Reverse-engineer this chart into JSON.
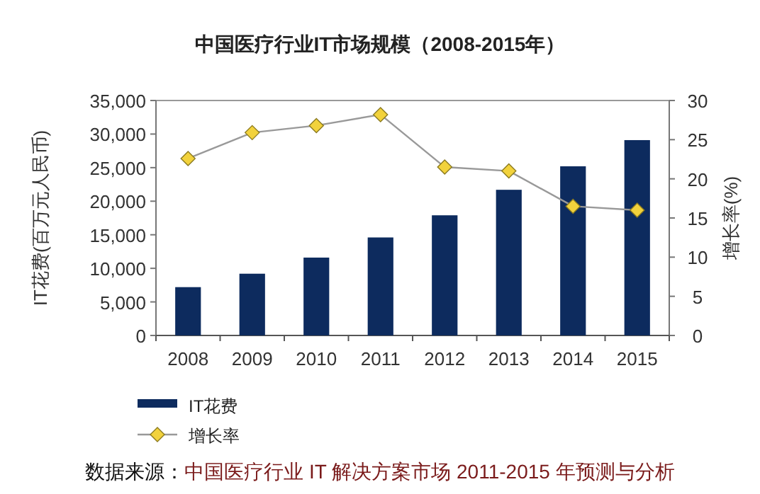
{
  "chart_data": {
    "type": "bar",
    "title": "中国医疗行业IT市场规模（2008-2015年）",
    "categories": [
      "2008",
      "2009",
      "2010",
      "2011",
      "2012",
      "2013",
      "2014",
      "2015"
    ],
    "series": [
      {
        "name": "IT花费",
        "color": "#0d2b5e",
        "values": [
          7200,
          9200,
          11600,
          14600,
          17900,
          21700,
          25200,
          29100
        ]
      },
      {
        "name": "增长率",
        "type": "line",
        "axis": "y2",
        "color": "#f2d23c",
        "marker": "diamond",
        "values": [
          22.6,
          25.9,
          26.8,
          28.2,
          21.5,
          21.0,
          16.5,
          16.0
        ]
      }
    ],
    "ylabel": "IT花费(百万元人民币)",
    "y2label": "增长率(%)",
    "ylim": [
      0,
      35000
    ],
    "yticks": [
      {
        "value": 0,
        "label": "0"
      },
      {
        "value": 5000,
        "label": "5,000"
      },
      {
        "value": 10000,
        "label": "10,000"
      },
      {
        "value": 15000,
        "label": "15,000"
      },
      {
        "value": 20000,
        "label": "20,000"
      },
      {
        "value": 25000,
        "label": "25,000"
      },
      {
        "value": 30000,
        "label": "30,000"
      },
      {
        "value": 35000,
        "label": "35,000"
      }
    ],
    "y2lim": [
      0,
      30
    ],
    "y2ticks": [
      0,
      5,
      10,
      15,
      20,
      25,
      30
    ],
    "grid": false,
    "legend": "bottom",
    "annotations": [
      "数据来源：中国医疗行业 IT 解决方案市场 2011-2015 年预测与分析"
    ]
  }
}
